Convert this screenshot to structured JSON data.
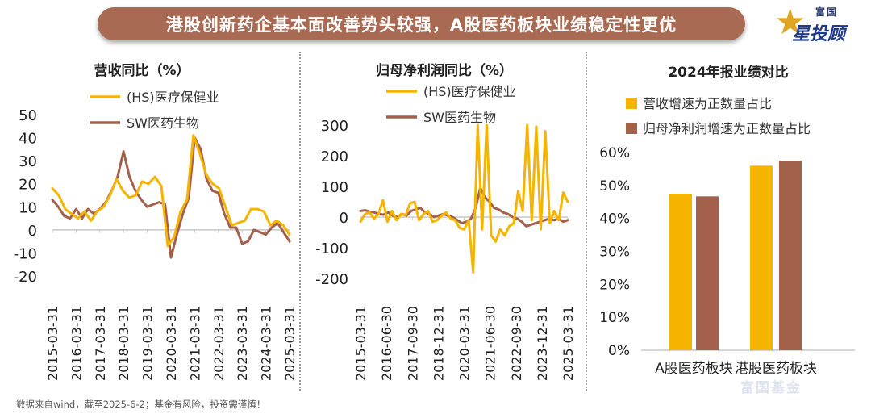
{
  "header": {
    "title": "港股创新药企基本面改善势头较强，A股医药板块业绩稳定性更优"
  },
  "logo": {
    "top_text": "富国",
    "bottom_text": "星投顾",
    "icon": "star-icon",
    "accent": "#e0a524"
  },
  "footer": {
    "note": "数据来自wind，截至2025-6-2；基金有风险，投资需谨慎！"
  },
  "watermark": {
    "text": "富国基金"
  },
  "colors": {
    "orange": "#f5b400",
    "brown": "#a3604a",
    "banner": "#a86a52"
  },
  "chart_data": [
    {
      "type": "line",
      "title": "营收同比（%）",
      "ylim": [
        -20,
        50
      ],
      "yticks": [
        -20,
        -10,
        0,
        10,
        20,
        30,
        40,
        50
      ],
      "xticks": [
        "2015-03-31",
        "2016-03-31",
        "2017-03-31",
        "2018-03-31",
        "2019-03-31",
        "2020-03-31",
        "2021-03-31",
        "2022-03-31",
        "2023-03-31",
        "2024-03-31",
        "2025-03-31"
      ],
      "series": [
        {
          "name": "(HS)医疗保健业",
          "color": "#f5b400",
          "values": [
            18,
            15,
            9,
            7,
            5,
            8,
            4,
            8,
            10,
            15,
            22,
            17,
            14,
            15,
            21,
            20,
            23,
            19,
            -7,
            -3,
            8,
            13,
            41,
            33,
            24,
            20,
            18,
            10,
            2,
            3,
            4,
            9,
            9,
            8,
            2,
            4,
            2,
            -2
          ]
        },
        {
          "name": "SW医药生物",
          "color": "#a3604a",
          "values": [
            13,
            10,
            6,
            5,
            9,
            5,
            9,
            7,
            9,
            12,
            17,
            23,
            34,
            23,
            17,
            13,
            10,
            11,
            12,
            11,
            -12,
            -2,
            7,
            14,
            40,
            35,
            22,
            17,
            16,
            7,
            1,
            1,
            -6,
            -5,
            0,
            -1,
            -2,
            1,
            3,
            -1,
            -5
          ]
        }
      ]
    },
    {
      "type": "line",
      "title": "归母净利润同比（%）",
      "ylim": [
        -200,
        300
      ],
      "yticks": [
        -200,
        -100,
        0,
        100,
        200,
        300
      ],
      "xticks": [
        "2015-03-31",
        "2016-06-30",
        "2017-09-30",
        "2018-12-31",
        "2020-03-31",
        "2021-06-30",
        "2022-09-30",
        "2023-12-31",
        "2025-03-31"
      ],
      "series": [
        {
          "name": "(HS)医疗保健业",
          "color": "#f5b400",
          "values": [
            -15,
            10,
            15,
            -5,
            10,
            55,
            -15,
            20,
            -10,
            10,
            5,
            45,
            50,
            -10,
            10,
            20,
            -15,
            -10,
            5,
            15,
            -5,
            -10,
            -35,
            -40,
            -10,
            -180,
            300,
            -40,
            300,
            -60,
            -80,
            -40,
            -60,
            -30,
            -20,
            85,
            20,
            300,
            -10,
            295,
            -40,
            280,
            -20,
            20,
            -10,
            80,
            50
          ]
        },
        {
          "name": "SW医药生物",
          "color": "#a3604a",
          "values": [
            20,
            22,
            18,
            15,
            10,
            8,
            15,
            5,
            0,
            10,
            5,
            20,
            25,
            30,
            15,
            10,
            0,
            5,
            10,
            5,
            0,
            -10,
            -20,
            -15,
            -5,
            30,
            95,
            65,
            50,
            30,
            25,
            15,
            10,
            0,
            -5,
            -15,
            -30,
            -25,
            -20,
            -15,
            -10,
            -5,
            -10,
            -5,
            -15,
            -10
          ]
        }
      ]
    },
    {
      "type": "bar",
      "title": "2024年报业绩对比",
      "categories": [
        "A股医药板块",
        "港股医药板块"
      ],
      "ylim": [
        0,
        0.6
      ],
      "yticks": [
        "0%",
        "10%",
        "20%",
        "30%",
        "40%",
        "50%",
        "60%"
      ],
      "series": [
        {
          "name": "营收增速为正数量占比",
          "color": "#f5b400",
          "values": [
            0.475,
            0.56
          ]
        },
        {
          "name": "归母净利润增速为正数量占比",
          "color": "#a3604a",
          "values": [
            0.467,
            0.575
          ]
        }
      ]
    }
  ]
}
